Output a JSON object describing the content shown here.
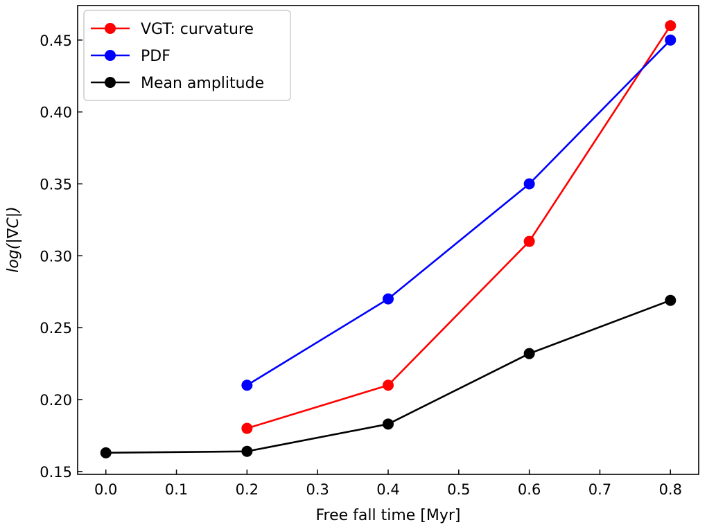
{
  "chart_data": {
    "type": "line",
    "title": "",
    "xlabel": "Free fall time [Myr]",
    "ylabel": "log(|∇C|)",
    "xlim": [
      -0.04,
      0.84
    ],
    "ylim": [
      0.148,
      0.474
    ],
    "xticks": [
      0.0,
      0.1,
      0.2,
      0.3,
      0.4,
      0.5,
      0.6,
      0.7,
      0.8
    ],
    "xtick_labels": [
      "0.0",
      "0.1",
      "0.2",
      "0.3",
      "0.4",
      "0.5",
      "0.6",
      "0.7",
      "0.8"
    ],
    "yticks": [
      0.15,
      0.2,
      0.25,
      0.3,
      0.35,
      0.4,
      0.45
    ],
    "ytick_labels": [
      "0.15",
      "0.20",
      "0.25",
      "0.30",
      "0.35",
      "0.40",
      "0.45"
    ],
    "grid": false,
    "legend_position": "top-left",
    "series": [
      {
        "name": "VGT: curvature",
        "color": "#ff0000",
        "x": [
          0.2,
          0.4,
          0.6,
          0.8
        ],
        "y": [
          0.18,
          0.21,
          0.31,
          0.46
        ]
      },
      {
        "name": "PDF",
        "color": "#0000ff",
        "x": [
          0.2,
          0.4,
          0.6,
          0.8
        ],
        "y": [
          0.21,
          0.27,
          0.35,
          0.45
        ]
      },
      {
        "name": "Mean amplitude",
        "color": "#000000",
        "x": [
          0.0,
          0.2,
          0.4,
          0.6,
          0.8
        ],
        "y": [
          0.163,
          0.164,
          0.183,
          0.232,
          0.269
        ]
      }
    ]
  }
}
